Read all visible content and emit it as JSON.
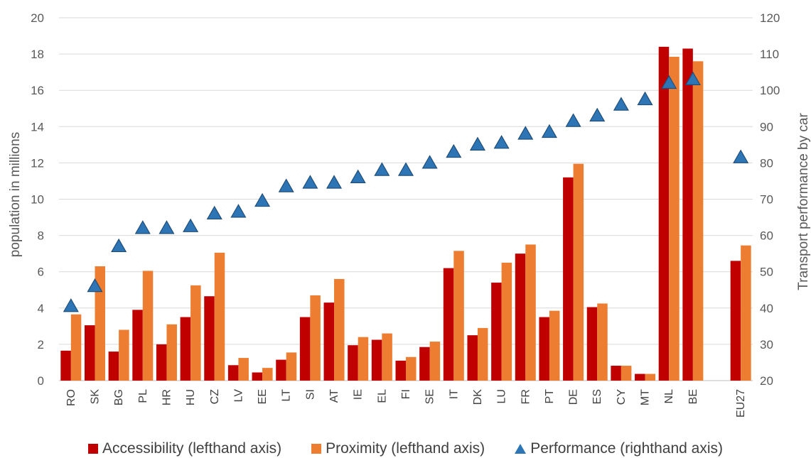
{
  "chart_data": {
    "type": "bar",
    "categories": [
      "RO",
      "SK",
      "BG",
      "PL",
      "HR",
      "HU",
      "CZ",
      "LV",
      "EE",
      "LT",
      "SI",
      "AT",
      "IE",
      "EL",
      "FI",
      "SE",
      "IT",
      "DK",
      "LU",
      "FR",
      "PT",
      "DE",
      "ES",
      "CY",
      "MT",
      "NL",
      "BE",
      "",
      "EU27"
    ],
    "series": [
      {
        "name": "Accessibility (lefthand axis)",
        "type": "bar",
        "axis": "left",
        "color": "#c00000",
        "values": [
          1.65,
          3.05,
          1.6,
          3.9,
          2.0,
          3.5,
          4.65,
          0.85,
          0.45,
          1.15,
          3.5,
          4.3,
          1.95,
          2.25,
          1.1,
          1.85,
          6.2,
          2.5,
          5.4,
          7.0,
          3.5,
          11.2,
          4.05,
          0.82,
          0.37,
          18.4,
          18.3,
          null,
          6.6
        ]
      },
      {
        "name": "Proximity (lefthand axis)",
        "type": "bar",
        "axis": "left",
        "color": "#ed7d31",
        "values": [
          3.65,
          6.3,
          2.8,
          6.05,
          3.1,
          5.25,
          7.05,
          1.25,
          0.7,
          1.55,
          4.7,
          5.6,
          2.4,
          2.6,
          1.3,
          2.15,
          7.15,
          2.9,
          6.5,
          7.5,
          3.85,
          11.95,
          4.25,
          0.82,
          0.37,
          17.85,
          17.6,
          null,
          7.45
        ]
      },
      {
        "name": "Performance (righthand axis)",
        "type": "marker",
        "axis": "right",
        "color": "#2e75b6",
        "values": [
          40.5,
          46,
          57,
          62,
          62,
          62.5,
          66,
          66.5,
          69.5,
          73.5,
          74.5,
          74.5,
          76,
          78,
          78,
          80,
          83,
          85,
          85.5,
          88,
          88.5,
          91.5,
          93,
          96,
          97.5,
          102,
          103,
          null,
          81.5
        ]
      }
    ],
    "ylabel": "population in millions",
    "y2label": "Transport performance by car",
    "ylim": [
      0,
      20
    ],
    "yticks": [
      0,
      2,
      4,
      6,
      8,
      10,
      12,
      14,
      16,
      18,
      20
    ],
    "y2lim": [
      20,
      120
    ],
    "y2ticks": [
      20,
      30,
      40,
      50,
      60,
      70,
      80,
      90,
      100,
      110,
      120
    ],
    "grid": true,
    "legend_position": "bottom"
  }
}
